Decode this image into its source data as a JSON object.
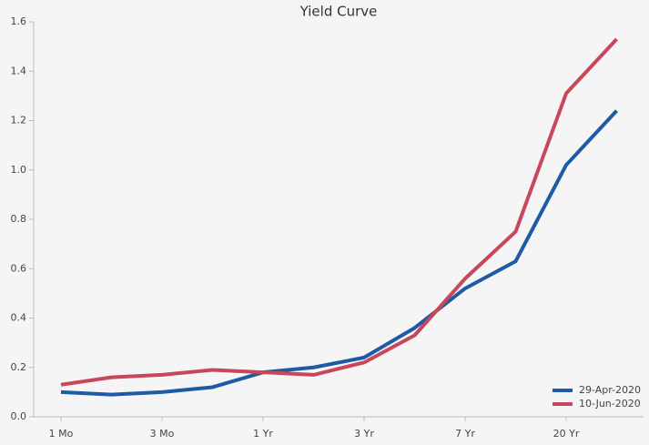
{
  "chart_data": {
    "type": "line",
    "title": "Yield Curve",
    "categories": [
      "1 Mo",
      null,
      "3 Mo",
      null,
      "1 Yr",
      null,
      "3 Yr",
      null,
      "7 Yr",
      null,
      "20 Yr",
      null
    ],
    "series": [
      {
        "name": "29-Apr-2020",
        "color": "#1f5aa6",
        "values": [
          0.1,
          0.09,
          0.1,
          0.12,
          0.18,
          0.2,
          0.24,
          0.36,
          0.52,
          0.63,
          1.02,
          1.24
        ]
      },
      {
        "name": "10-Jun-2020",
        "color": "#c8475b",
        "values": [
          0.13,
          0.16,
          0.17,
          0.19,
          0.18,
          0.17,
          0.22,
          0.33,
          0.56,
          0.75,
          1.31,
          1.53
        ]
      }
    ],
    "ylim": [
      0,
      1.6
    ],
    "yticks": [
      {
        "value": 0,
        "label": "0.0"
      },
      0.2,
      0.4,
      0.6,
      0.8,
      {
        "value": 1,
        "label": "1.0"
      },
      1.2,
      1.4,
      1.6
    ],
    "legend": "lower right"
  }
}
